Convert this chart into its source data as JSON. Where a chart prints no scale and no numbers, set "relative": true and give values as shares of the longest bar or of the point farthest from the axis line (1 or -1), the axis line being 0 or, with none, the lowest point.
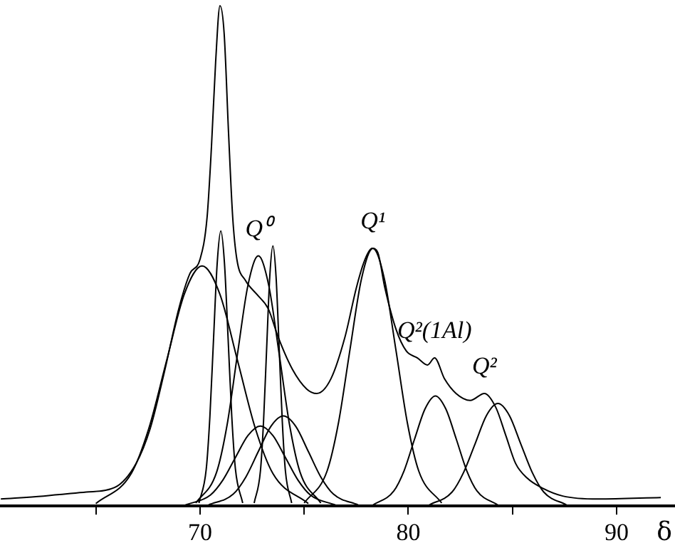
{
  "chart_data": {
    "type": "line",
    "relative": true,
    "xlabel": "δ",
    "xlim": [
      60.4,
      92.8
    ],
    "xticks": [
      {
        "value": 65,
        "label": null
      },
      70,
      {
        "value": 75,
        "label": null
      },
      80,
      {
        "value": 85,
        "label": null
      },
      90
    ],
    "marker": "none",
    "line_style": "solid",
    "annotations": [
      {
        "text": "Q⁰",
        "x": 72.8,
        "y": 0.5
      },
      {
        "text": "Q¹",
        "x": 78.3,
        "y": 0.515
      },
      {
        "text": "Q²(1Al)",
        "x": 81.26,
        "y": 0.296
      },
      {
        "text": "Q²",
        "x": 83.65,
        "y": 0.225
      }
    ],
    "series": [
      {
        "color": "#000000",
        "x": [
          60.44,
          62.49,
          64.54,
          65.9,
          66.93,
          67.61,
          68.29,
          68.98,
          69.52,
          70.0,
          70.34,
          70.55,
          70.75,
          70.96,
          71.16,
          71.37,
          71.57,
          71.77,
          72.18,
          72.73,
          73.28,
          73.75,
          74.44,
          75.12,
          75.6,
          76.28,
          76.96,
          77.51,
          77.92,
          78.26,
          78.53,
          78.87,
          79.42,
          79.9,
          80.44,
          80.92,
          81.26,
          81.74,
          82.29,
          82.97,
          83.65,
          84.2,
          84.68,
          85.15,
          85.7,
          86.38,
          87.41,
          89.11,
          92.12
        ],
        "values": [
          0.014,
          0.02,
          0.028,
          0.037,
          0.085,
          0.155,
          0.268,
          0.394,
          0.465,
          0.493,
          0.577,
          0.718,
          0.887,
          1.0,
          0.944,
          0.746,
          0.577,
          0.493,
          0.451,
          0.423,
          0.394,
          0.338,
          0.273,
          0.234,
          0.225,
          0.254,
          0.338,
          0.437,
          0.493,
          0.515,
          0.507,
          0.437,
          0.352,
          0.31,
          0.296,
          0.282,
          0.296,
          0.254,
          0.225,
          0.211,
          0.225,
          0.197,
          0.141,
          0.085,
          0.056,
          0.037,
          0.02,
          0.014,
          0.017
        ]
      },
      {
        "color": "#000000",
        "x": [
          65.0,
          66.7,
          67.55,
          68.4,
          69.25,
          70.1,
          70.95,
          71.8,
          72.65,
          73.5,
          75.2
        ],
        "values": [
          0.005,
          0.065,
          0.156,
          0.291,
          0.424,
          0.48,
          0.424,
          0.291,
          0.156,
          0.065,
          0.005
        ]
      },
      {
        "color": "#000000",
        "x": [
          69.95,
          70.3,
          70.475,
          70.65,
          70.825,
          71.0,
          71.175,
          71.35,
          71.525,
          71.7,
          72.05
        ],
        "values": [
          0.006,
          0.074,
          0.179,
          0.334,
          0.485,
          0.55,
          0.485,
          0.334,
          0.179,
          0.074,
          0.006
        ]
      },
      {
        "color": "#000000",
        "x": [
          69.8,
          70.8,
          71.3,
          71.8,
          72.3,
          72.8,
          73.3,
          73.8,
          74.3,
          74.8,
          75.8
        ],
        "values": [
          0.006,
          0.068,
          0.162,
          0.304,
          0.441,
          0.5,
          0.441,
          0.304,
          0.162,
          0.068,
          0.006
        ]
      },
      {
        "color": "#000000",
        "x": [
          72.6,
          72.9,
          73.05,
          73.2,
          73.35,
          73.5,
          73.65,
          73.8,
          73.95,
          74.1,
          74.4
        ],
        "values": [
          0.006,
          0.07,
          0.169,
          0.316,
          0.459,
          0.52,
          0.459,
          0.316,
          0.169,
          0.07,
          0.006
        ]
      },
      {
        "color": "#000000",
        "x": [
          69.3,
          70.5,
          71.1,
          71.7,
          72.3,
          72.9,
          73.5,
          74.1,
          74.7,
          75.3,
          76.5
        ],
        "values": [
          0.002,
          0.022,
          0.052,
          0.097,
          0.141,
          0.16,
          0.141,
          0.097,
          0.052,
          0.022,
          0.002
        ]
      },
      {
        "color": "#000000",
        "x": [
          70.4,
          71.6,
          72.2,
          72.8,
          73.4,
          74.0,
          74.6,
          75.2,
          75.8,
          76.4,
          77.6
        ],
        "values": [
          0.002,
          0.024,
          0.058,
          0.109,
          0.159,
          0.18,
          0.159,
          0.109,
          0.058,
          0.024,
          0.002
        ]
      },
      {
        "color": "#000000",
        "x": [
          75.0,
          76.1,
          76.65,
          77.2,
          77.75,
          78.3,
          78.85,
          79.4,
          79.95,
          80.5,
          81.6
        ],
        "values": [
          0.006,
          0.07,
          0.167,
          0.313,
          0.454,
          0.515,
          0.454,
          0.313,
          0.167,
          0.07,
          0.006
        ]
      },
      {
        "color": "#000000",
        "x": [
          78.3,
          79.3,
          79.8,
          80.3,
          80.8,
          81.3,
          81.8,
          82.3,
          82.8,
          83.3,
          84.3
        ],
        "values": [
          0.002,
          0.03,
          0.071,
          0.134,
          0.194,
          0.22,
          0.194,
          0.134,
          0.071,
          0.03,
          0.002
        ]
      },
      {
        "color": "#000000",
        "x": [
          81.0,
          82.1,
          82.65,
          83.2,
          83.75,
          84.3,
          84.85,
          85.4,
          85.95,
          86.5,
          87.6
        ],
        "values": [
          0.002,
          0.028,
          0.067,
          0.124,
          0.181,
          0.205,
          0.181,
          0.124,
          0.067,
          0.028,
          0.002
        ]
      }
    ]
  }
}
